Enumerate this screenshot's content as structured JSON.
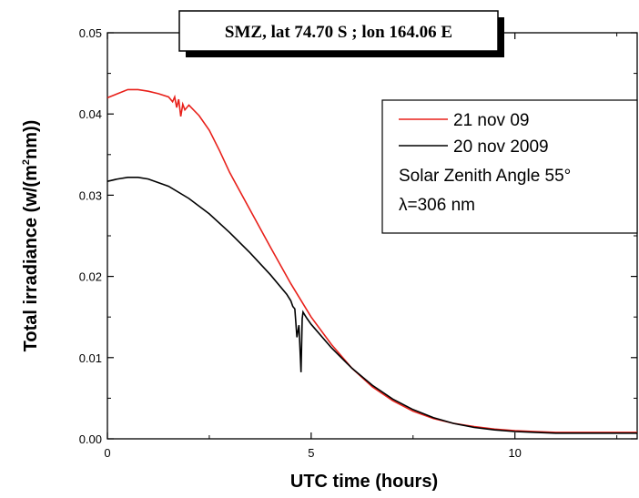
{
  "chart_data": {
    "type": "line",
    "title": "SMZ, lat 74.70 S ; lon 164.06 E",
    "xlabel": "UTC time (hours)",
    "ylabel_prefix": "Total irradiance (w/(m",
    "ylabel_sup": "2",
    "ylabel_suffix": "nm))",
    "xlim": [
      0,
      13
    ],
    "ylim": [
      0,
      0.05
    ],
    "xticks": [
      0,
      5,
      10
    ],
    "xtick_labels": [
      "0",
      "5",
      "10"
    ],
    "yticks": [
      0,
      0.01,
      0.02,
      0.03,
      0.04,
      0.05
    ],
    "ytick_labels": [
      "0.00",
      "0.01",
      "0.02",
      "0.03",
      "0.04",
      "0.05"
    ],
    "grid": false,
    "legend_position": "top-right",
    "series": [
      {
        "name": "21 nov 09",
        "color": "#e8201a",
        "x": [
          0,
          0.25,
          0.5,
          0.75,
          1.0,
          1.25,
          1.5,
          1.6,
          1.65,
          1.7,
          1.75,
          1.8,
          1.85,
          1.9,
          2.0,
          2.25,
          2.5,
          2.75,
          3.0,
          3.5,
          4.0,
          4.5,
          5.0,
          5.5,
          6.0,
          6.5,
          7.0,
          7.5,
          8.0,
          8.5,
          9.0,
          9.5,
          10.0,
          10.5,
          11.0,
          11.5,
          12.0,
          12.5,
          13.0
        ],
        "y": [
          0.042,
          0.0425,
          0.043,
          0.043,
          0.0428,
          0.0425,
          0.0421,
          0.0415,
          0.0421,
          0.0408,
          0.0418,
          0.0397,
          0.0412,
          0.0405,
          0.0411,
          0.0398,
          0.038,
          0.0355,
          0.0328,
          0.0282,
          0.0236,
          0.0191,
          0.015,
          0.0116,
          0.0087,
          0.0064,
          0.0047,
          0.0034,
          0.0025,
          0.0019,
          0.0015,
          0.0012,
          0.001,
          0.0009,
          0.0008,
          0.0008,
          0.0008,
          0.0008,
          0.0008
        ]
      },
      {
        "name": "20 nov 2009",
        "color": "#000000",
        "x": [
          0,
          0.25,
          0.5,
          0.75,
          1.0,
          1.5,
          2.0,
          2.5,
          3.0,
          3.5,
          4.0,
          4.4,
          4.5,
          4.55,
          4.6,
          4.65,
          4.7,
          4.72,
          4.75,
          4.78,
          4.8,
          4.85,
          4.9,
          5.0,
          5.5,
          6.0,
          6.5,
          7.0,
          7.5,
          8.0,
          8.5,
          9.0,
          9.5,
          10.0,
          10.5,
          11.0,
          11.5,
          12.0,
          12.5,
          13.0
        ],
        "y": [
          0.0317,
          0.032,
          0.0322,
          0.0322,
          0.032,
          0.0311,
          0.0296,
          0.0277,
          0.0254,
          0.0229,
          0.0202,
          0.0178,
          0.017,
          0.0163,
          0.016,
          0.0125,
          0.014,
          0.0118,
          0.0082,
          0.0148,
          0.0156,
          0.0152,
          0.0148,
          0.0141,
          0.0112,
          0.0087,
          0.0066,
          0.0049,
          0.0036,
          0.0026,
          0.0019,
          0.0014,
          0.0011,
          0.0009,
          0.0008,
          0.0007,
          0.0007,
          0.0007,
          0.0007,
          0.0007
        ]
      }
    ],
    "legend_extra_lines": [
      "Solar Zenith Angle 55°",
      "λ=306 nm"
    ]
  }
}
